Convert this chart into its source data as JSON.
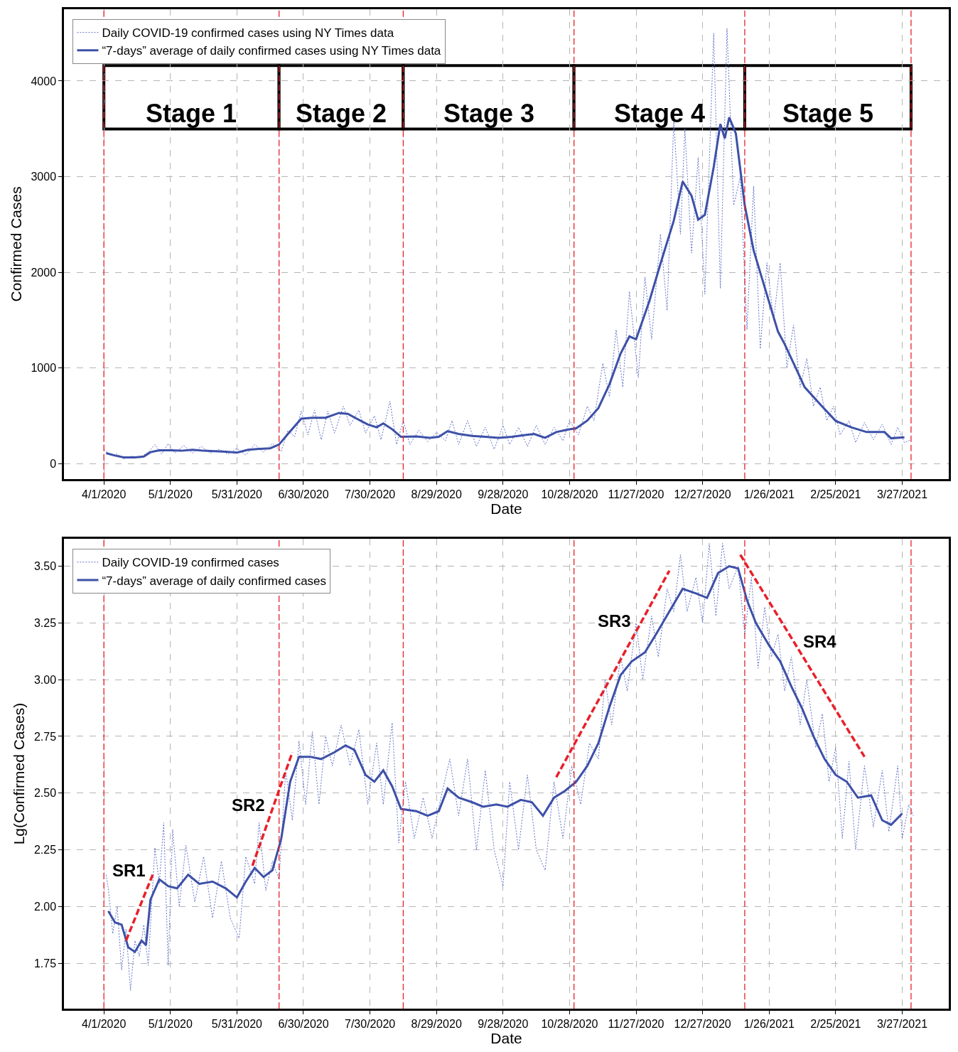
{
  "chart_data": [
    {
      "type": "line",
      "xlabel": "Date",
      "ylabel": "Confirmed Cases",
      "xlim": [
        "2020-03-14",
        "2021-04-17"
      ],
      "xticks": [
        {
          "value": "2020-04-01",
          "label": "4/1/2020"
        },
        {
          "value": "2020-05-01",
          "label": "5/1/2020"
        },
        {
          "value": "2020-05-31",
          "label": "5/31/2020"
        },
        {
          "value": "2020-06-30",
          "label": "6/30/2020"
        },
        {
          "value": "2020-07-30",
          "label": "7/30/2020"
        },
        {
          "value": "2020-08-29",
          "label": "8/29/2020"
        },
        {
          "value": "2020-09-28",
          "label": "9/28/2020"
        },
        {
          "value": "2020-10-28",
          "label": "10/28/2020"
        },
        {
          "value": "2020-11-27",
          "label": "11/27/2020"
        },
        {
          "value": "2020-12-27",
          "label": "12/27/2020"
        },
        {
          "value": "2021-01-26",
          "label": "1/26/2021"
        },
        {
          "value": "2021-02-25",
          "label": "2/25/2021"
        },
        {
          "value": "2021-03-27",
          "label": "3/27/2021"
        }
      ],
      "ylim": [
        -160,
        4750
      ],
      "yticks": [
        0,
        1000,
        2000,
        3000,
        4000
      ],
      "grid": true,
      "legend": "top left",
      "marker": "none",
      "series": [
        {
          "name": "Daily COVID-19 confirmed cases using NY Times data",
          "color": "#6272c8",
          "line_style": "dotted",
          "x": [
            "2020-04-01",
            "2020-04-04",
            "2020-04-07",
            "2020-04-10",
            "2020-04-14",
            "2020-04-17",
            "2020-04-21",
            "2020-04-24",
            "2020-04-27",
            "2020-04-30",
            "2020-05-03",
            "2020-05-07",
            "2020-05-11",
            "2020-05-15",
            "2020-05-19",
            "2020-05-23",
            "2020-05-27",
            "2020-05-31",
            "2020-06-04",
            "2020-06-08",
            "2020-06-12",
            "2020-06-16",
            "2020-06-20",
            "2020-06-23",
            "2020-06-26",
            "2020-06-29",
            "2020-07-02",
            "2020-07-05",
            "2020-07-08",
            "2020-07-11",
            "2020-07-14",
            "2020-07-18",
            "2020-07-21",
            "2020-07-25",
            "2020-07-28",
            "2020-08-01",
            "2020-08-04",
            "2020-08-08",
            "2020-08-11",
            "2020-08-14",
            "2020-08-17",
            "2020-08-21",
            "2020-08-25",
            "2020-08-29",
            "2020-09-02",
            "2020-09-05",
            "2020-09-08",
            "2020-09-12",
            "2020-09-16",
            "2020-09-20",
            "2020-09-24",
            "2020-09-28",
            "2020-10-01",
            "2020-10-05",
            "2020-10-09",
            "2020-10-13",
            "2020-10-17",
            "2020-10-21",
            "2020-10-25",
            "2020-10-28",
            "2020-11-01",
            "2020-11-05",
            "2020-11-08",
            "2020-11-12",
            "2020-11-15",
            "2020-11-18",
            "2020-11-21",
            "2020-11-24",
            "2020-11-28",
            "2020-12-01",
            "2020-12-04",
            "2020-12-08",
            "2020-12-11",
            "2020-12-14",
            "2020-12-17",
            "2020-12-19",
            "2020-12-22",
            "2020-12-25",
            "2020-12-28",
            "2021-01-01",
            "2021-01-04",
            "2021-01-07",
            "2021-01-10",
            "2021-01-13",
            "2021-01-16",
            "2021-01-19",
            "2021-01-22",
            "2021-01-25",
            "2021-01-28",
            "2021-01-31",
            "2021-02-03",
            "2021-02-06",
            "2021-02-09",
            "2021-02-12",
            "2021-02-15",
            "2021-02-18",
            "2021-02-21",
            "2021-02-24",
            "2021-02-27",
            "2021-03-03",
            "2021-03-06",
            "2021-03-10",
            "2021-03-14",
            "2021-03-18",
            "2021-03-22",
            "2021-03-25",
            "2021-03-28",
            "2021-03-31"
          ],
          "values": [
            150,
            90,
            100,
            50,
            80,
            60,
            120,
            200,
            100,
            210,
            110,
            190,
            110,
            180,
            110,
            150,
            100,
            160,
            90,
            200,
            120,
            210,
            130,
            350,
            280,
            550,
            300,
            560,
            250,
            550,
            320,
            600,
            400,
            560,
            320,
            500,
            250,
            650,
            200,
            450,
            200,
            350,
            230,
            330,
            240,
            450,
            200,
            450,
            180,
            380,
            150,
            400,
            200,
            380,
            180,
            400,
            200,
            380,
            240,
            450,
            300,
            600,
            450,
            1050,
            700,
            1400,
            800,
            1800,
            900,
            1950,
            1300,
            2400,
            1600,
            3600,
            2400,
            3500,
            2200,
            3200,
            1770,
            4500,
            1830,
            4550,
            2700,
            3000,
            1400,
            2900,
            1200,
            2100,
            1500,
            2100,
            1000,
            1450,
            800,
            1100,
            600,
            800,
            450,
            600,
            300,
            450,
            220,
            430,
            250,
            410,
            200,
            380,
            220,
            250
          ]
        },
        {
          "name": "“7-days” average of daily confirmed cases using NY Times data",
          "color": "#3d50a8",
          "line_style": "solid",
          "x": [
            "2020-04-02",
            "2020-04-06",
            "2020-04-10",
            "2020-04-15",
            "2020-04-19",
            "2020-04-22",
            "2020-04-26",
            "2020-05-01",
            "2020-05-06",
            "2020-05-11",
            "2020-05-16",
            "2020-05-21",
            "2020-05-26",
            "2020-05-31",
            "2020-06-05",
            "2020-06-10",
            "2020-06-15",
            "2020-06-19",
            "2020-06-23",
            "2020-06-29",
            "2020-07-04",
            "2020-07-10",
            "2020-07-16",
            "2020-07-20",
            "2020-07-24",
            "2020-07-29",
            "2020-08-02",
            "2020-08-05",
            "2020-08-09",
            "2020-08-13",
            "2020-08-20",
            "2020-08-26",
            "2020-08-30",
            "2020-09-03",
            "2020-09-08",
            "2020-09-14",
            "2020-09-20",
            "2020-09-26",
            "2020-10-02",
            "2020-10-08",
            "2020-10-12",
            "2020-10-17",
            "2020-10-22",
            "2020-10-27",
            "2020-10-31",
            "2020-11-05",
            "2020-11-10",
            "2020-11-15",
            "2020-11-20",
            "2020-11-24",
            "2020-11-27",
            "2020-12-03",
            "2020-12-08",
            "2020-12-14",
            "2020-12-18",
            "2020-12-22",
            "2020-12-25",
            "2020-12-28",
            "2021-01-01",
            "2021-01-04",
            "2021-01-06",
            "2021-01-08",
            "2021-01-11",
            "2021-01-15",
            "2021-01-19",
            "2021-01-23",
            "2021-01-30",
            "2021-02-02",
            "2021-02-06",
            "2021-02-11",
            "2021-02-18",
            "2021-02-25",
            "2021-03-04",
            "2021-03-11",
            "2021-03-19",
            "2021-03-22",
            "2021-03-28"
          ],
          "values": [
            110,
            85,
            65,
            65,
            75,
            120,
            140,
            140,
            135,
            145,
            135,
            130,
            125,
            115,
            145,
            155,
            160,
            200,
            310,
            470,
            480,
            480,
            530,
            520,
            470,
            410,
            380,
            420,
            360,
            280,
            285,
            270,
            280,
            340,
            310,
            290,
            280,
            270,
            280,
            300,
            310,
            270,
            330,
            355,
            370,
            450,
            580,
            830,
            1150,
            1330,
            1300,
            1700,
            2090,
            2540,
            2950,
            2800,
            2550,
            2600,
            3100,
            3550,
            3400,
            3620,
            3450,
            2700,
            2230,
            1920,
            1380,
            1250,
            1050,
            800,
            620,
            447,
            380,
            330,
            330,
            265,
            275
          ]
        }
      ],
      "ref_lines": [
        {
          "axis": "x",
          "value": "2020-04-01",
          "color": "#e8202a",
          "line_style": "dashed"
        },
        {
          "axis": "x",
          "value": "2020-06-19",
          "color": "#e8202a",
          "line_style": "dashed"
        },
        {
          "axis": "x",
          "value": "2020-08-14",
          "color": "#e8202a",
          "line_style": "dashed"
        },
        {
          "axis": "x",
          "value": "2020-10-30",
          "color": "#e8202a",
          "line_style": "dashed"
        },
        {
          "axis": "x",
          "value": "2021-01-15",
          "color": "#e8202a",
          "line_style": "dashed"
        },
        {
          "axis": "x",
          "value": "2021-03-31",
          "color": "#e8202a",
          "line_style": "dashed"
        }
      ],
      "bands": [
        {
          "axis": "x",
          "from": "2020-04-01",
          "to": "2020-06-19",
          "label": "Stage 1",
          "color": "#ffffff"
        },
        {
          "axis": "x",
          "from": "2020-06-19",
          "to": "2020-08-14",
          "label": "Stage 2",
          "color": "#ffffff"
        },
        {
          "axis": "x",
          "from": "2020-08-14",
          "to": "2020-10-30",
          "label": "Stage 3",
          "color": "#ffffff"
        },
        {
          "axis": "x",
          "from": "2020-10-30",
          "to": "2021-01-15",
          "label": "Stage 4",
          "color": "#ffffff"
        },
        {
          "axis": "x",
          "from": "2021-01-15",
          "to": "2021-03-31",
          "label": "Stage 5",
          "color": "#ffffff"
        }
      ]
    },
    {
      "type": "line",
      "xlabel": "Date",
      "ylabel": "Lg(Confirmed Cases)",
      "xlim": [
        "2020-03-14",
        "2021-04-17"
      ],
      "xticks": [
        {
          "value": "2020-04-01",
          "label": "4/1/2020"
        },
        {
          "value": "2020-05-01",
          "label": "5/1/2020"
        },
        {
          "value": "2020-05-31",
          "label": "5/31/2020"
        },
        {
          "value": "2020-06-30",
          "label": "6/30/2020"
        },
        {
          "value": "2020-07-30",
          "label": "7/30/2020"
        },
        {
          "value": "2020-08-29",
          "label": "8/29/2020"
        },
        {
          "value": "2020-09-28",
          "label": "9/28/2020"
        },
        {
          "value": "2020-10-28",
          "label": "10/28/2020"
        },
        {
          "value": "2020-11-27",
          "label": "11/27/2020"
        },
        {
          "value": "2020-12-27",
          "label": "12/27/2020"
        },
        {
          "value": "2021-01-26",
          "label": "1/26/2021"
        },
        {
          "value": "2021-02-25",
          "label": "2/25/2021"
        },
        {
          "value": "2021-03-27",
          "label": "3/27/2021"
        }
      ],
      "ylim": [
        1.55,
        3.62
      ],
      "yticks": [
        {
          "value": 1.75,
          "label": "1.75"
        },
        {
          "value": 2.0,
          "label": "2.00"
        },
        {
          "value": 2.25,
          "label": "2.25"
        },
        {
          "value": 2.5,
          "label": "2.50"
        },
        {
          "value": 2.75,
          "label": "2.75"
        },
        {
          "value": 3.0,
          "label": "3.00"
        },
        {
          "value": 3.25,
          "label": "3.25"
        },
        {
          "value": 3.5,
          "label": "3.50"
        }
      ],
      "grid": true,
      "legend": "top left",
      "marker": "none",
      "series": [
        {
          "name": "Daily COVID-19 confirmed cases",
          "color": "#6272c8",
          "line_style": "dotted",
          "x": [
            "2020-04-02",
            "2020-04-03",
            "2020-04-05",
            "2020-04-07",
            "2020-04-09",
            "2020-04-11",
            "2020-04-13",
            "2020-04-15",
            "2020-04-17",
            "2020-04-19",
            "2020-04-21",
            "2020-04-24",
            "2020-04-26",
            "2020-04-28",
            "2020-04-30",
            "2020-05-02",
            "2020-05-05",
            "2020-05-08",
            "2020-05-12",
            "2020-05-16",
            "2020-05-20",
            "2020-05-24",
            "2020-05-28",
            "2020-06-01",
            "2020-06-04",
            "2020-06-08",
            "2020-06-10",
            "2020-06-13",
            "2020-06-16",
            "2020-06-19",
            "2020-06-22",
            "2020-06-25",
            "2020-06-28",
            "2020-07-01",
            "2020-07-04",
            "2020-07-07",
            "2020-07-10",
            "2020-07-13",
            "2020-07-17",
            "2020-07-21",
            "2020-07-25",
            "2020-07-29",
            "2020-08-02",
            "2020-08-05",
            "2020-08-09",
            "2020-08-12",
            "2020-08-15",
            "2020-08-19",
            "2020-08-23",
            "2020-08-27",
            "2020-08-31",
            "2020-09-04",
            "2020-09-08",
            "2020-09-12",
            "2020-09-16",
            "2020-09-20",
            "2020-09-24",
            "2020-09-28",
            "2020-10-01",
            "2020-10-05",
            "2020-10-09",
            "2020-10-13",
            "2020-10-17",
            "2020-10-21",
            "2020-10-25",
            "2020-10-29",
            "2020-11-02",
            "2020-11-06",
            "2020-11-10",
            "2020-11-13",
            "2020-11-16",
            "2020-11-20",
            "2020-11-23",
            "2020-11-27",
            "2020-11-30",
            "2020-12-04",
            "2020-12-07",
            "2020-12-11",
            "2020-12-14",
            "2020-12-17",
            "2020-12-20",
            "2020-12-24",
            "2020-12-27",
            "2020-12-30",
            "2021-01-02",
            "2021-01-05",
            "2021-01-08",
            "2021-01-12",
            "2021-01-15",
            "2021-01-18",
            "2021-01-21",
            "2021-01-24",
            "2021-01-27",
            "2021-01-30",
            "2021-02-02",
            "2021-02-05",
            "2021-02-09",
            "2021-02-12",
            "2021-02-16",
            "2021-02-19",
            "2021-02-22",
            "2021-02-25",
            "2021-02-28",
            "2021-03-03",
            "2021-03-06",
            "2021-03-10",
            "2021-03-14",
            "2021-03-18",
            "2021-03-21",
            "2021-03-25",
            "2021-03-27",
            "2021-03-30",
            "2021-04-01"
          ],
          "values": [
            2.14,
            2.08,
            1.88,
            2.0,
            1.72,
            1.9,
            1.63,
            1.85,
            1.78,
            1.92,
            1.74,
            2.26,
            2.1,
            2.37,
            1.74,
            2.34,
            2.0,
            2.27,
            2.02,
            2.22,
            1.95,
            2.2,
            1.95,
            1.86,
            2.22,
            2.1,
            2.37,
            2.07,
            2.2,
            2.12,
            2.6,
            2.38,
            2.73,
            2.45,
            2.77,
            2.45,
            2.75,
            2.62,
            2.8,
            2.62,
            2.78,
            2.45,
            2.72,
            2.45,
            2.81,
            2.28,
            2.55,
            2.3,
            2.48,
            2.3,
            2.48,
            2.65,
            2.4,
            2.65,
            2.25,
            2.6,
            2.25,
            2.09,
            2.55,
            2.25,
            2.58,
            2.25,
            2.16,
            2.55,
            2.3,
            2.62,
            2.45,
            2.72,
            2.65,
            3.0,
            2.8,
            3.1,
            2.95,
            3.25,
            3.0,
            3.28,
            3.1,
            3.4,
            3.3,
            3.55,
            3.3,
            3.45,
            3.25,
            3.6,
            3.28,
            3.6,
            3.4,
            3.5,
            3.2,
            3.45,
            3.05,
            3.32,
            3.1,
            3.2,
            2.95,
            3.1,
            2.8,
            3.0,
            2.7,
            2.85,
            2.55,
            2.7,
            2.3,
            2.64,
            2.25,
            2.62,
            2.35,
            2.6,
            2.33,
            2.62,
            2.3,
            2.45,
            2.4
          ]
        },
        {
          "name": "“7-days” average of daily confirmed cases",
          "color": "#3d50a8",
          "line_style": "solid",
          "x": [
            "2020-04-03",
            "2020-04-06",
            "2020-04-09",
            "2020-04-12",
            "2020-04-15",
            "2020-04-18",
            "2020-04-20",
            "2020-04-22",
            "2020-04-26",
            "2020-04-30",
            "2020-05-04",
            "2020-05-09",
            "2020-05-14",
            "2020-05-20",
            "2020-05-26",
            "2020-05-31",
            "2020-06-04",
            "2020-06-08",
            "2020-06-12",
            "2020-06-16",
            "2020-06-20",
            "2020-06-24",
            "2020-06-28",
            "2020-07-03",
            "2020-07-08",
            "2020-07-14",
            "2020-07-19",
            "2020-07-23",
            "2020-07-28",
            "2020-08-01",
            "2020-08-05",
            "2020-08-09",
            "2020-08-13",
            "2020-08-20",
            "2020-08-25",
            "2020-08-30",
            "2020-09-03",
            "2020-09-08",
            "2020-09-14",
            "2020-09-19",
            "2020-09-25",
            "2020-09-30",
            "2020-10-06",
            "2020-10-11",
            "2020-10-16",
            "2020-10-21",
            "2020-10-26",
            "2020-10-31",
            "2020-11-05",
            "2020-11-10",
            "2020-11-15",
            "2020-11-20",
            "2020-11-25",
            "2020-12-01",
            "2020-12-06",
            "2020-12-12",
            "2020-12-18",
            "2020-12-24",
            "2020-12-29",
            "2021-01-03",
            "2021-01-08",
            "2021-01-12",
            "2021-01-16",
            "2021-01-20",
            "2021-01-26",
            "2021-01-31",
            "2021-02-05",
            "2021-02-10",
            "2021-02-15",
            "2021-02-20",
            "2021-02-25",
            "2021-03-02",
            "2021-03-07",
            "2021-03-13",
            "2021-03-18",
            "2021-03-22",
            "2021-03-27"
          ],
          "values": [
            1.98,
            1.93,
            1.92,
            1.82,
            1.8,
            1.85,
            1.83,
            2.03,
            2.12,
            2.09,
            2.08,
            2.14,
            2.1,
            2.11,
            2.08,
            2.04,
            2.11,
            2.17,
            2.13,
            2.16,
            2.3,
            2.55,
            2.66,
            2.66,
            2.65,
            2.68,
            2.71,
            2.69,
            2.58,
            2.55,
            2.6,
            2.53,
            2.43,
            2.42,
            2.4,
            2.42,
            2.52,
            2.48,
            2.46,
            2.44,
            2.45,
            2.44,
            2.47,
            2.46,
            2.4,
            2.48,
            2.51,
            2.55,
            2.62,
            2.72,
            2.88,
            3.02,
            3.08,
            3.12,
            3.2,
            3.3,
            3.4,
            3.38,
            3.36,
            3.47,
            3.5,
            3.49,
            3.35,
            3.25,
            3.15,
            3.08,
            2.97,
            2.87,
            2.75,
            2.65,
            2.58,
            2.55,
            2.48,
            2.49,
            2.38,
            2.36,
            2.41
          ]
        },
        {
          "color": "#e8202a",
          "line_style": "dashed",
          "x": [
            "2020-04-11",
            "2020-04-23"
          ],
          "values": [
            1.85,
            2.14
          ]
        },
        {
          "color": "#e8202a",
          "line_style": "dashed",
          "x": [
            "2020-06-07",
            "2020-06-25"
          ],
          "values": [
            2.18,
            2.68
          ]
        },
        {
          "color": "#e8202a",
          "line_style": "dashed",
          "x": [
            "2020-10-22",
            "2020-12-12"
          ],
          "values": [
            2.57,
            3.48
          ]
        },
        {
          "color": "#e8202a",
          "line_style": "dashed",
          "x": [
            "2021-01-13",
            "2021-03-10"
          ],
          "values": [
            3.55,
            2.66
          ]
        }
      ],
      "ref_lines": [
        {
          "axis": "x",
          "value": "2020-04-01",
          "color": "#e8202a",
          "line_style": "dashed"
        },
        {
          "axis": "x",
          "value": "2020-06-19",
          "color": "#e8202a",
          "line_style": "dashed"
        },
        {
          "axis": "x",
          "value": "2020-08-14",
          "color": "#e8202a",
          "line_style": "dashed"
        },
        {
          "axis": "x",
          "value": "2020-10-30",
          "color": "#e8202a",
          "line_style": "dashed"
        },
        {
          "axis": "x",
          "value": "2021-01-15",
          "color": "#e8202a",
          "line_style": "dashed"
        },
        {
          "axis": "x",
          "value": "2021-03-31",
          "color": "#e8202a",
          "line_style": "dashed"
        }
      ],
      "annotations": [
        {
          "text": "SR1",
          "x": "2020-04-23",
          "y": 2.14
        },
        {
          "text": "SR2",
          "x": "2020-06-16",
          "y": 2.43
        },
        {
          "text": "SR3",
          "x": "2020-11-28",
          "y": 3.24
        },
        {
          "text": "SR4",
          "x": "2021-02-07",
          "y": 3.15
        }
      ]
    }
  ]
}
